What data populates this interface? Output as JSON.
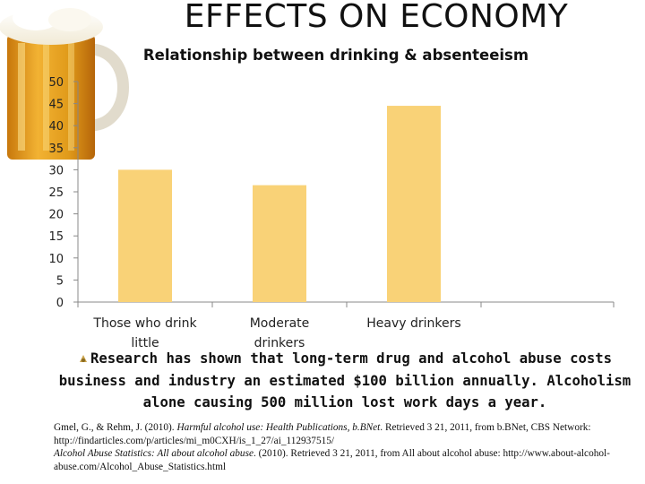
{
  "slide": {
    "title": "EFFECTS ON ECONOMY"
  },
  "chart_data": {
    "type": "bar",
    "title": "Relationship between drinking & absenteeism",
    "categories": [
      "Those who drink little",
      "Moderate drinkers",
      "Heavy drinkers"
    ],
    "values": [
      30,
      26.5,
      44.5
    ],
    "ylim": [
      0,
      50
    ],
    "yticks": [
      0,
      5,
      10,
      15,
      20,
      25,
      30,
      35,
      40,
      45,
      50
    ],
    "xlabel": "",
    "ylabel": "",
    "grid": false,
    "legend": "none",
    "bar_color": "#F9D277"
  },
  "body": {
    "text": "Research has shown that long-term drug and alcohol abuse costs business and industry an estimated $100 billion annually. Alcoholism alone causing 500 million lost work days a year."
  },
  "references": [
    {
      "authors": "Gmel, G., & Rehm, J. (2010). ",
      "title": "Harmful alcohol use: Health Publications, b.BNet",
      "rest": ". Retrieved 3 21, 2011, from b.BNet, CBS Network: http://findarticles.com/p/articles/mi_m0CXH/is_1_27/ai_112937515/"
    },
    {
      "authors": "",
      "title": "Alcohol Abuse Statistics: All about alcohol abuse",
      "rest": ". (2010). Retrieved 3 21, 2011, from All about alcohol abuse: http://www.about-alcohol-abuse.com/Alcohol_Abuse_Statistics.html"
    }
  ]
}
